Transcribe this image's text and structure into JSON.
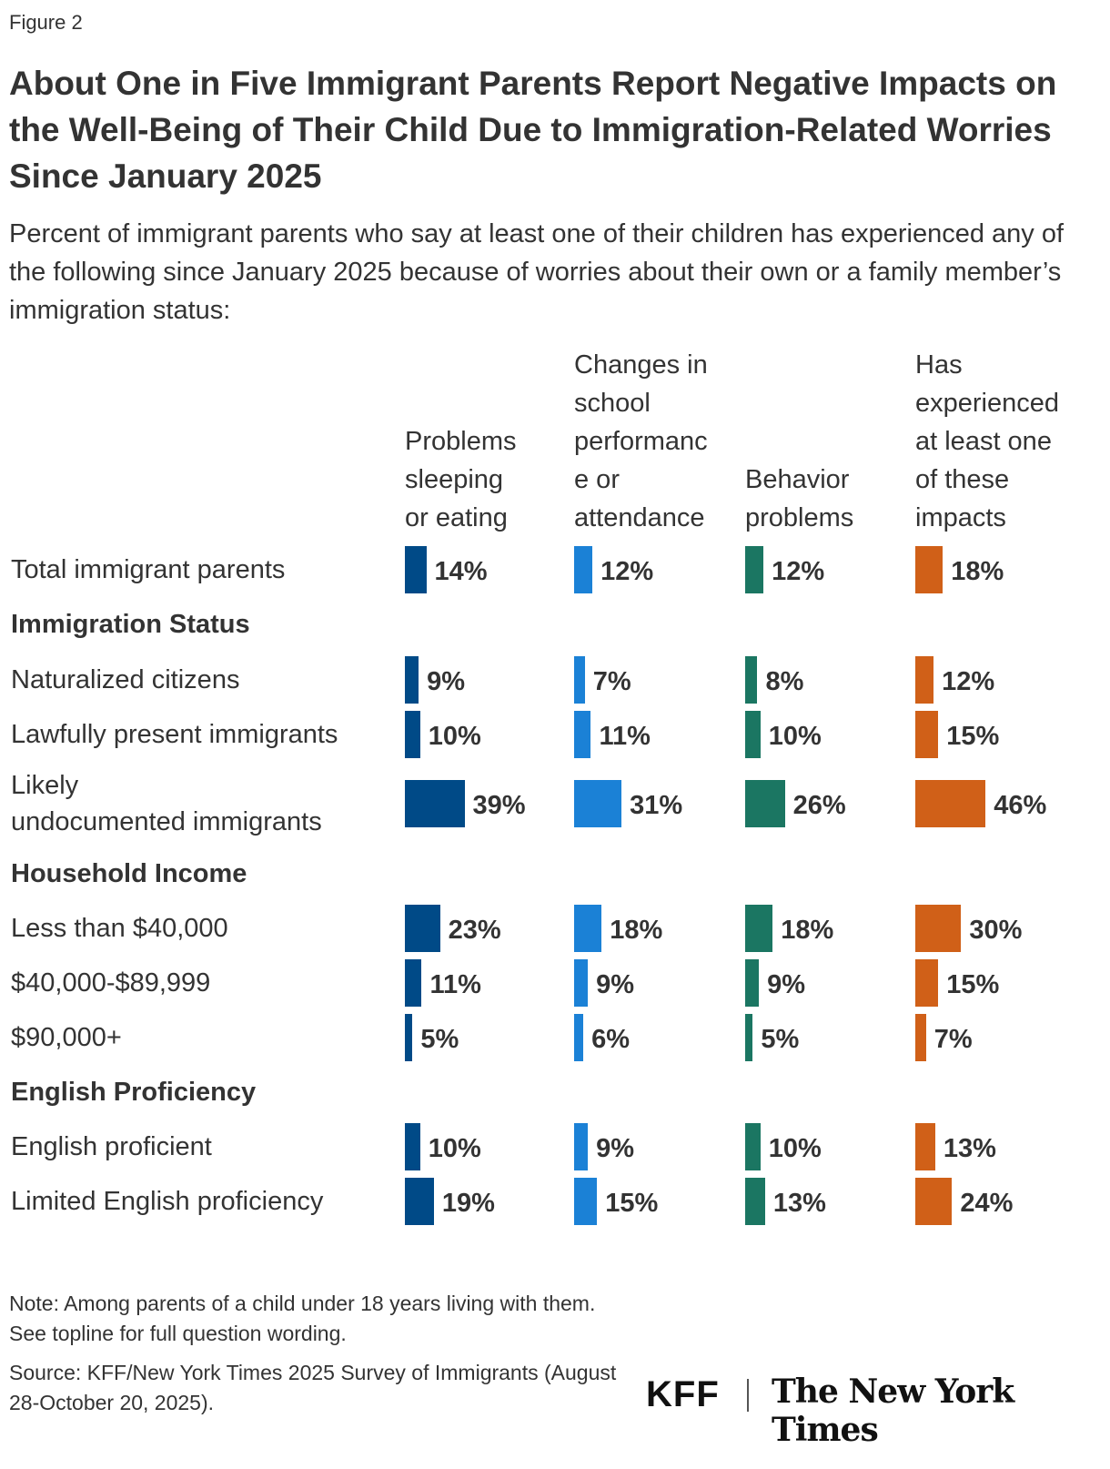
{
  "figure_label": "Figure 2",
  "chart_data": {
    "type": "bar",
    "title": "About One in Five Immigrant Parents Report Negative Impacts on the Well-Being of Their Child Due to Immigration-Related Worries Since January 2025",
    "subtitle": "Percent of immigrant parents who say at least one of their children has experienced any of the following since January 2025 because of worries about their own or a family member’s immigration status:",
    "orientation": "horizontal",
    "unit": "%",
    "xlim": [
      0,
      100
    ],
    "grid": false,
    "series": [
      {
        "name": "Problems sleeping or eating",
        "color": "#004a87"
      },
      {
        "name": "Changes in school performance or attendance",
        "color": "#1b81d6"
      },
      {
        "name": "Behavior problems",
        "color": "#1b7662"
      },
      {
        "name": "Has experienced at least one of these impacts",
        "color": "#d06018"
      }
    ],
    "series_headers": [
      [
        "Problems",
        "sleeping",
        "or eating"
      ],
      [
        "Changes in",
        "school",
        "performanc",
        "e or",
        "attendance"
      ],
      [
        "Behavior",
        "problems"
      ],
      [
        "Has",
        "experienced",
        "at least one",
        "of these",
        "impacts"
      ]
    ],
    "rows": [
      {
        "label": "Total immigrant parents",
        "values": [
          14,
          12,
          12,
          18
        ]
      },
      {
        "section": "Immigration Status"
      },
      {
        "label": "Naturalized citizens",
        "values": [
          9,
          7,
          8,
          12
        ]
      },
      {
        "label": "Lawfully present immigrants",
        "values": [
          10,
          11,
          10,
          15
        ]
      },
      {
        "label": "Likely undocumented immigrants",
        "label_lines": [
          "Likely",
          "undocumented immigrants"
        ],
        "values": [
          39,
          31,
          26,
          46
        ]
      },
      {
        "section": "Household Income"
      },
      {
        "label": "Less than $40,000",
        "values": [
          23,
          18,
          18,
          30
        ]
      },
      {
        "label": "$40,000-$89,999",
        "values": [
          11,
          9,
          9,
          15
        ]
      },
      {
        "label": "$90,000+",
        "values": [
          5,
          6,
          5,
          7
        ]
      },
      {
        "section": "English Proficiency"
      },
      {
        "label": "English proficient",
        "values": [
          10,
          9,
          10,
          13
        ]
      },
      {
        "label": "Limited English proficiency",
        "values": [
          19,
          15,
          13,
          24
        ]
      }
    ]
  },
  "note": "Note: Among parents of a child under 18 years living with them. See topline for full question wording.",
  "source": "Source: KFF/New York Times 2025 Survey of Immigrants (August 28-October 20, 2025).",
  "logos": {
    "kff": "KFF",
    "nyt": "The New York Times"
  }
}
